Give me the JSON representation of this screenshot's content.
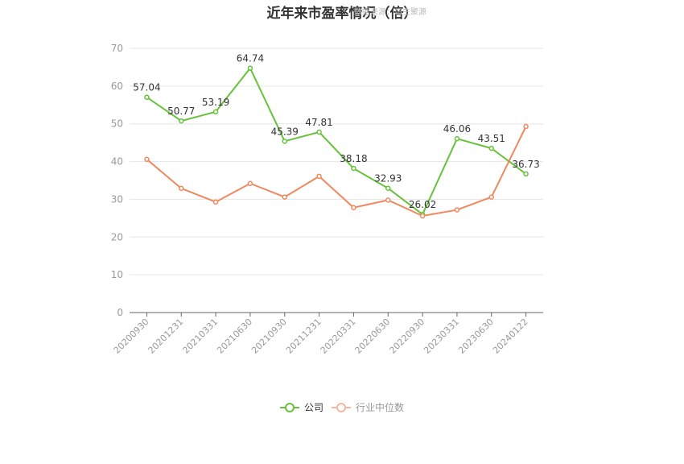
{
  "chart_data": {
    "type": "line",
    "title": "近年来市盈率情况（倍）",
    "watermark": "数据来源：恒生聚源",
    "categories": [
      "20200930",
      "20201231",
      "20210331",
      "20210630",
      "20210930",
      "20211231",
      "20220331",
      "20220630",
      "20220930",
      "20230331",
      "20230630",
      "20240122"
    ],
    "ylim": [
      0,
      70
    ],
    "yticks": [
      0,
      10,
      20,
      30,
      40,
      50,
      60,
      70
    ],
    "grid": true,
    "legend_position": "bottom",
    "series": [
      {
        "name": "公司",
        "color": "#67c23a",
        "show_labels": true,
        "values": [
          57.04,
          50.77,
          53.19,
          64.74,
          45.39,
          47.81,
          38.18,
          32.93,
          26.02,
          46.06,
          43.51,
          36.73
        ]
      },
      {
        "name": "行业中位数",
        "color": "#f0885e",
        "show_labels": false,
        "values": [
          40.6,
          32.9,
          29.3,
          34.2,
          30.6,
          36.1,
          27.8,
          29.8,
          25.6,
          27.2,
          30.6,
          49.3
        ]
      }
    ]
  }
}
